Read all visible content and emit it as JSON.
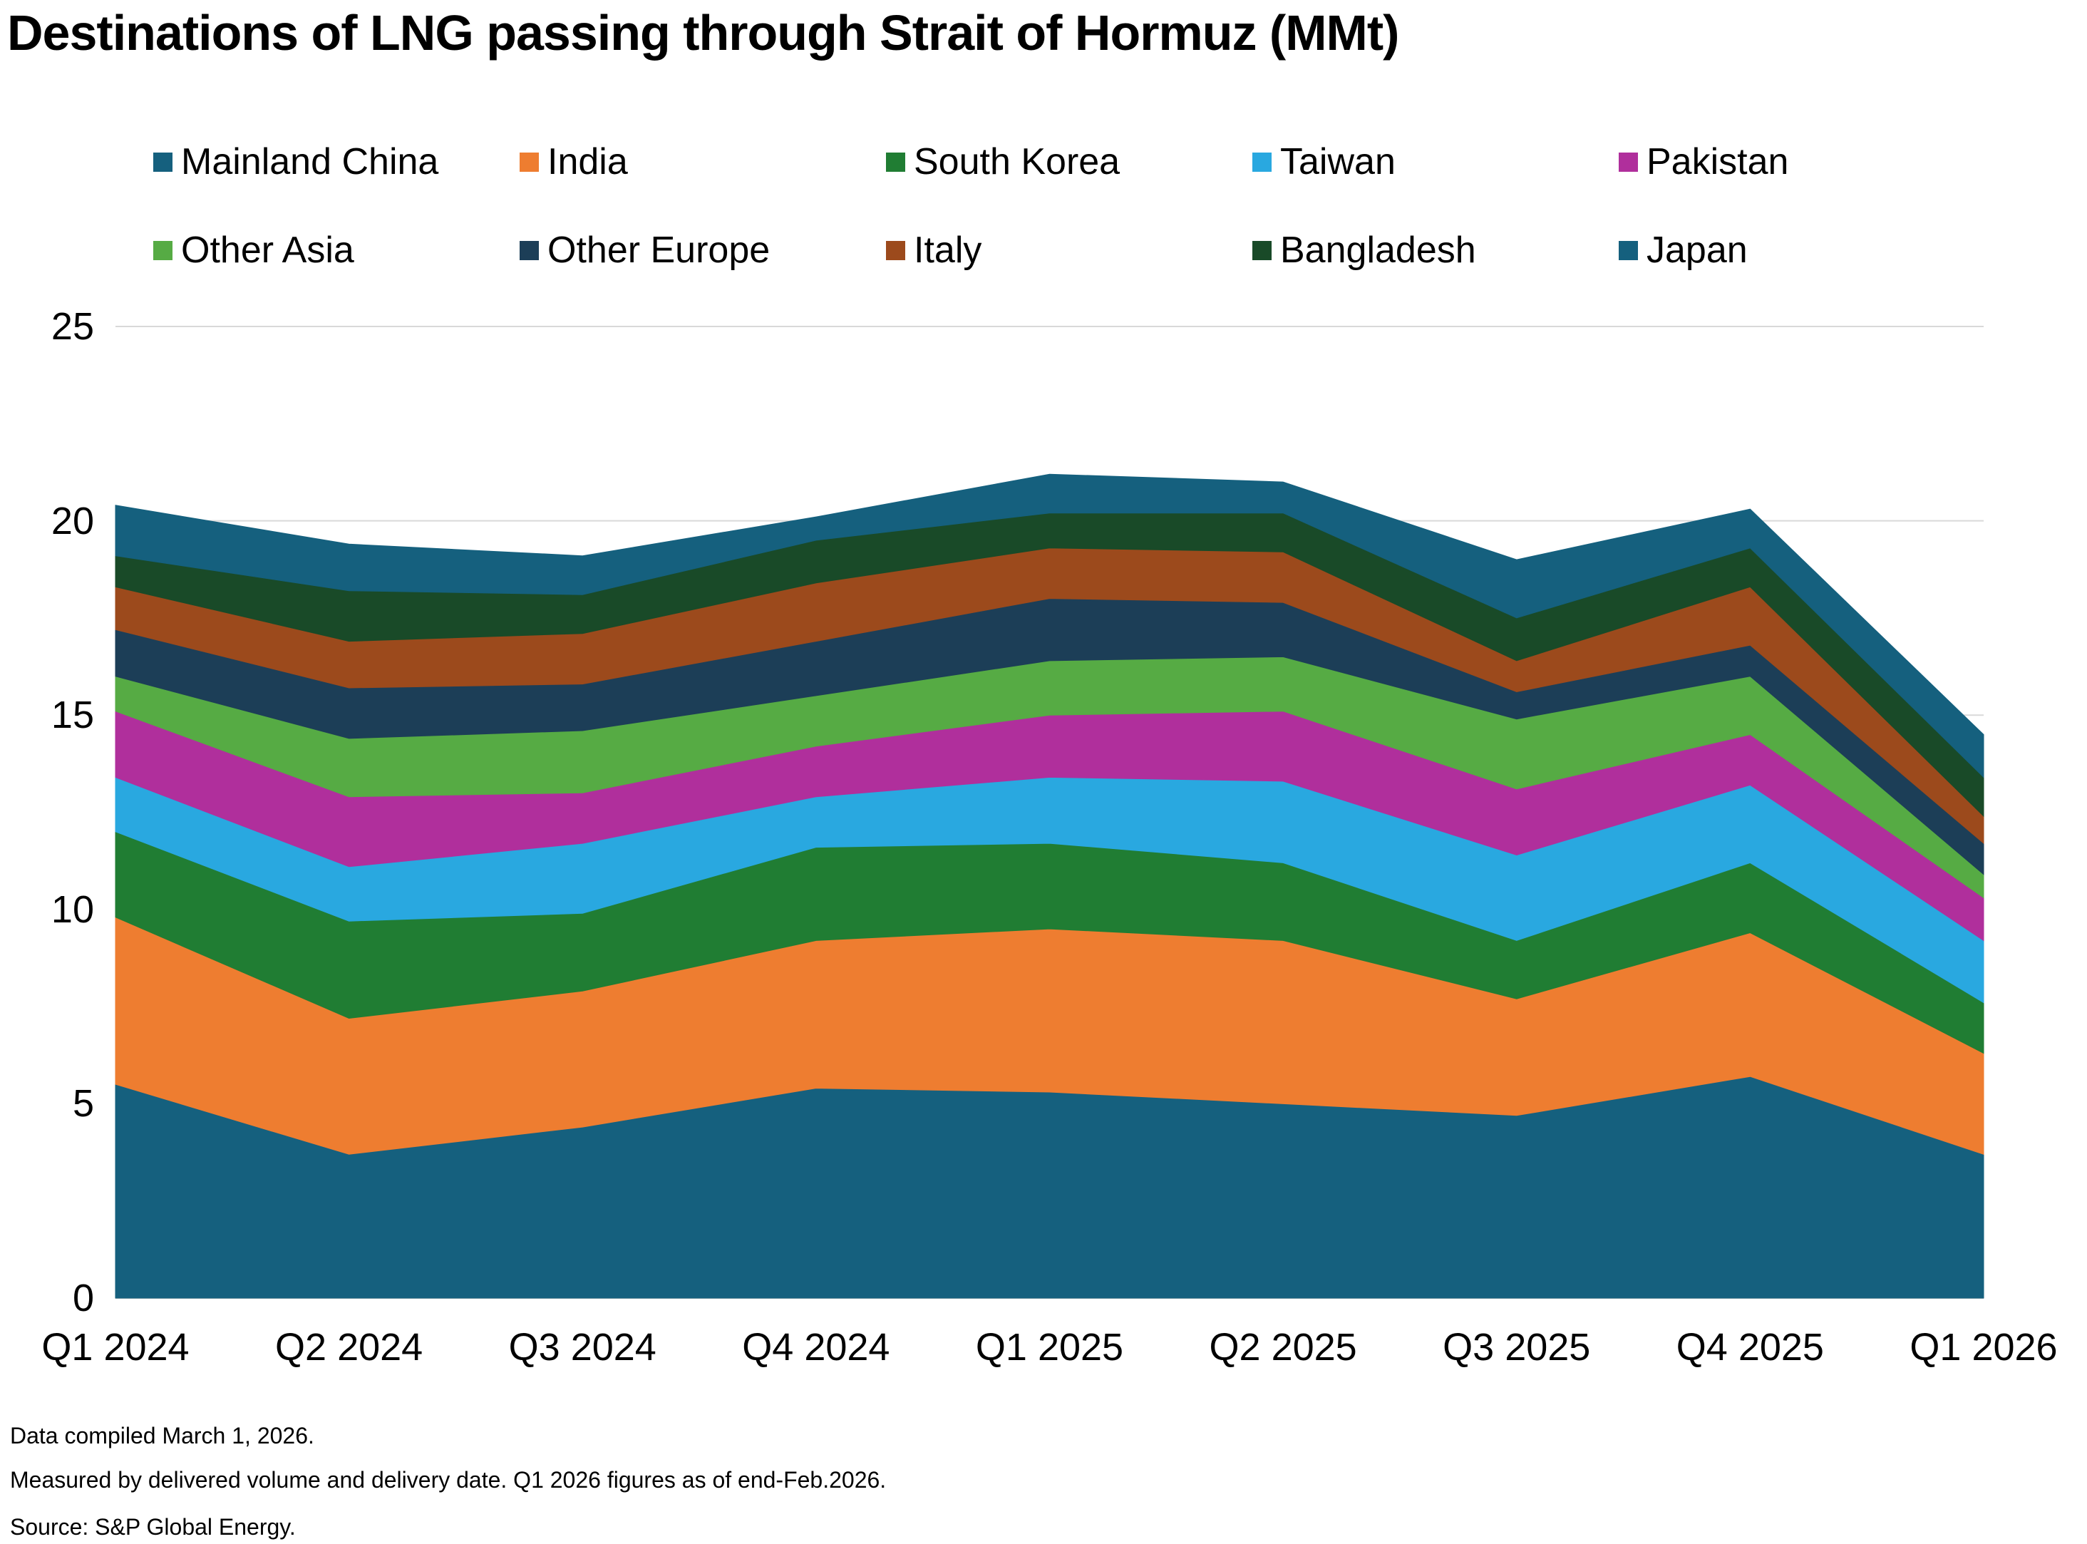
{
  "title": "Destinations of LNG passing through Strait of Hormuz (MMt)",
  "footnotes": {
    "line1": "Data compiled March 1, 2026.",
    "line2": "Measured by delivered volume and delivery date. Q1 2026 figures as of end-Feb.2026.",
    "line3": "Source: S&P Global Energy."
  },
  "chart_data": {
    "type": "area",
    "stacked": true,
    "title": "Destinations of LNG passing through Strait of Hormuz (MMt)",
    "unit": "MMt",
    "xlabel": "",
    "ylabel": "",
    "categories": [
      "Q1 2024",
      "Q2 2024",
      "Q3 2024",
      "Q4 2024",
      "Q1 2025",
      "Q2 2025",
      "Q3 2025",
      "Q4 2025",
      "Q1 2026"
    ],
    "ylim": [
      0,
      25
    ],
    "yticks": [
      0,
      5,
      10,
      15,
      20,
      25
    ],
    "grid": true,
    "legend_position": "top",
    "series": [
      {
        "name": "Mainland China",
        "color": "#15607e",
        "values": [
          5.5,
          3.7,
          4.4,
          5.4,
          5.3,
          5.0,
          4.7,
          5.7,
          3.7
        ]
      },
      {
        "name": "India",
        "color": "#ee7d30",
        "values": [
          4.3,
          3.5,
          3.5,
          3.8,
          4.2,
          4.2,
          3.0,
          3.7,
          2.6
        ]
      },
      {
        "name": "South Korea",
        "color": "#207d33",
        "values": [
          2.2,
          2.5,
          2.0,
          2.4,
          2.2,
          2.0,
          1.5,
          1.8,
          1.3
        ]
      },
      {
        "name": "Taiwan",
        "color": "#29a8e0",
        "values": [
          1.4,
          1.4,
          1.8,
          1.3,
          1.7,
          2.1,
          2.2,
          2.0,
          1.6
        ]
      },
      {
        "name": "Pakistan",
        "color": "#b02f9c",
        "values": [
          1.7,
          1.8,
          1.3,
          1.3,
          1.6,
          1.8,
          1.7,
          1.3,
          1.1
        ]
      },
      {
        "name": "Other Asia",
        "color": "#56ab44",
        "values": [
          0.9,
          1.5,
          1.6,
          1.3,
          1.4,
          1.4,
          1.8,
          1.5,
          0.6
        ]
      },
      {
        "name": "Other Europe",
        "color": "#1c3e57",
        "values": [
          1.2,
          1.3,
          1.2,
          1.4,
          1.6,
          1.4,
          0.7,
          0.8,
          0.8
        ]
      },
      {
        "name": "Italy",
        "color": "#9c4a1c",
        "values": [
          1.1,
          1.2,
          1.3,
          1.5,
          1.3,
          1.3,
          0.8,
          1.5,
          0.7
        ]
      },
      {
        "name": "Bangladesh",
        "color": "#194a28",
        "values": [
          0.8,
          1.3,
          1.0,
          1.1,
          0.9,
          1.0,
          1.1,
          1.0,
          1.0
        ]
      },
      {
        "name": "Japan",
        "color": "#15607e",
        "values": [
          1.3,
          1.2,
          1.0,
          0.6,
          1.0,
          0.8,
          1.5,
          1.0,
          1.1
        ]
      }
    ],
    "colors": {
      "gridline": "#d9d9d9",
      "axis_line": "#bfbfbf",
      "text": "#000000"
    }
  }
}
